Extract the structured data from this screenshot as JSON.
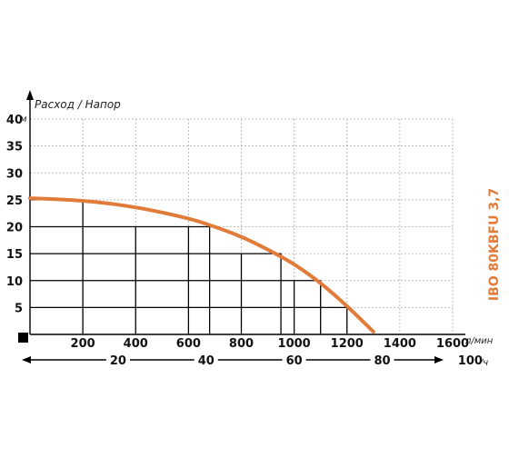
{
  "chart_data": {
    "type": "line",
    "title": "Расход / Напор",
    "side_label": "IBO 80KBFU 3,7",
    "y_unit": "м",
    "x_unit": "л/мин",
    "x2_unit": "м3/ч",
    "ylim": [
      0,
      40
    ],
    "xlim": [
      0,
      1600
    ],
    "y_ticks": [
      "5",
      "10",
      "15",
      "20",
      "25",
      "30",
      "35",
      "40"
    ],
    "x_ticks": [
      "200",
      "400",
      "600",
      "800",
      "1000",
      "1200",
      "1400",
      "1600"
    ],
    "x2_ticks": [
      "20",
      "40",
      "60",
      "80",
      "100"
    ],
    "grid": true,
    "colors": {
      "curve": "#E07B39",
      "grid": "#aaaaaa",
      "axis": "#000000"
    },
    "series": [
      {
        "x": [
          0,
          200,
          400,
          600,
          700,
          800,
          900,
          1000,
          1100,
          1200,
          1300
        ],
        "y": [
          25.3,
          24.9,
          23.7,
          21.6,
          20,
          18.2,
          15.8,
          13.1,
          9.6,
          5.3,
          0.5
        ]
      }
    ],
    "highlight_points": [
      {
        "x": 200,
        "y": 25
      },
      {
        "x": 680,
        "y": 20
      },
      {
        "x": 950,
        "y": 15
      },
      {
        "x": 1100,
        "y": 10
      },
      {
        "x": 1200,
        "y": 5
      }
    ]
  }
}
